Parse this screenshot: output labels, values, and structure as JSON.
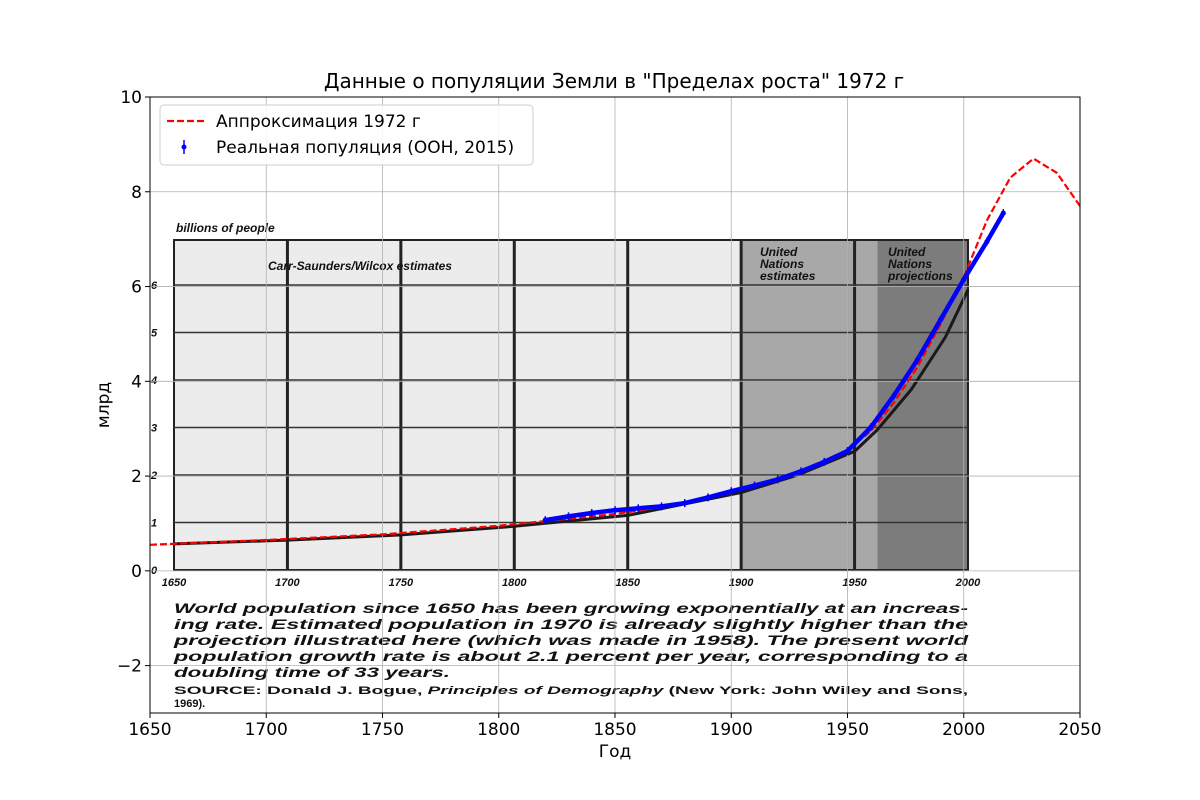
{
  "chart_data": {
    "type": "line",
    "title": "Данные о популяции Земли в \"Пределах роста\" 1972 г",
    "xlabel": "Год",
    "ylabel": "млрд",
    "xlim": [
      1650,
      2050
    ],
    "ylim": [
      -3,
      10
    ],
    "x_ticks": [
      1650,
      1700,
      1750,
      1800,
      1850,
      1900,
      1950,
      2000,
      2050
    ],
    "x_tick_labels": [
      "1650",
      "1700",
      "1750",
      "1800",
      "1850",
      "1900",
      "1950",
      "2000",
      "2050"
    ],
    "y_ticks": [
      -2,
      0,
      2,
      4,
      6,
      8,
      10
    ],
    "y_tick_labels": [
      "−2",
      "0",
      "2",
      "4",
      "6",
      "8",
      "10"
    ],
    "grid": true,
    "legend_position": "top-left",
    "series": [
      {
        "name": "Аппроксимация 1972 г",
        "color": "#ff0000",
        "style": "dashed",
        "x": [
          1650,
          1700,
          1750,
          1800,
          1850,
          1875,
          1900,
          1925,
          1950,
          1960,
          1970,
          1980,
          1990,
          2000,
          2010,
          2020,
          2030,
          2040,
          2050
        ],
        "y": [
          0.55,
          0.65,
          0.77,
          0.95,
          1.2,
          1.38,
          1.65,
          2.0,
          2.55,
          2.95,
          3.55,
          4.3,
          5.2,
          6.2,
          7.4,
          8.3,
          8.7,
          8.4,
          7.7
        ]
      },
      {
        "name": "Реальная популяция (ООН, 2015)",
        "color": "#0000ff",
        "style": "line-with-errorbars",
        "x": [
          1820,
          1830,
          1840,
          1850,
          1860,
          1870,
          1880,
          1890,
          1900,
          1910,
          1920,
          1930,
          1940,
          1950,
          1960,
          1970,
          1980,
          1990,
          2000,
          2010,
          2017
        ],
        "y": [
          1.07,
          1.15,
          1.22,
          1.28,
          1.32,
          1.36,
          1.43,
          1.55,
          1.68,
          1.8,
          1.93,
          2.1,
          2.3,
          2.53,
          3.03,
          3.7,
          4.45,
          5.3,
          6.15,
          6.95,
          7.55
        ]
      }
    ]
  },
  "scan_image": {
    "y_axis_caption": "billions of people",
    "region_labels": [
      "Carr-Saunders/Wilcox estimates",
      "United Nations estimates",
      "United Nations projections"
    ],
    "x_tick_labels": [
      "1650",
      "1700",
      "1750",
      "1800",
      "1850",
      "1900",
      "1950",
      "2000"
    ],
    "y_tick_labels": [
      "0",
      "1",
      "2",
      "3",
      "4",
      "5",
      "6"
    ],
    "caption_lines": [
      "World population since 1650 has been growing exponentially at an increas-",
      "ing rate. Estimated population in 1970 is already slightly higher than the",
      "projection illustrated here (which was made in 1958). The present world",
      "population growth rate is about 2.1 percent per year, corresponding to a",
      "doubling time of 33 years."
    ],
    "source_prefix": "SOURCE: Donald J. Bogue, ",
    "source_title": "Principles of Demography",
    "source_suffix": " (New York: John Wiley and Sons,",
    "source_line2": "1969).",
    "colors": {
      "panel_light": "#ececec",
      "panel_mid": "#a8a8a8",
      "panel_dark": "#7c7c7c"
    }
  }
}
